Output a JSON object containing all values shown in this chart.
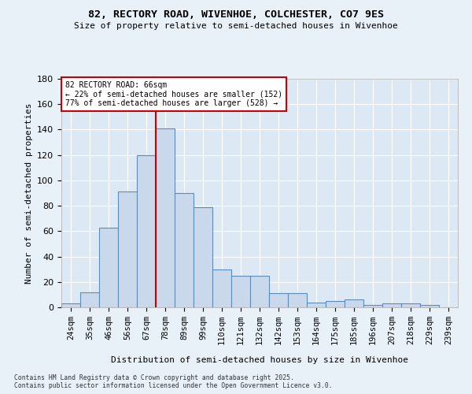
{
  "title_line1": "82, RECTORY ROAD, WIVENHOE, COLCHESTER, CO7 9ES",
  "title_line2": "Size of property relative to semi-detached houses in Wivenhoe",
  "xlabel": "Distribution of semi-detached houses by size in Wivenhoe",
  "ylabel": "Number of semi-detached properties",
  "categories": [
    "24sqm",
    "35sqm",
    "46sqm",
    "56sqm",
    "67sqm",
    "78sqm",
    "89sqm",
    "99sqm",
    "110sqm",
    "121sqm",
    "132sqm",
    "142sqm",
    "153sqm",
    "164sqm",
    "175sqm",
    "185sqm",
    "196sqm",
    "207sqm",
    "218sqm",
    "229sqm",
    "239sqm"
  ],
  "values": [
    3,
    12,
    63,
    91,
    120,
    141,
    90,
    79,
    30,
    25,
    25,
    11,
    11,
    4,
    5,
    6,
    2,
    3,
    3,
    2,
    0
  ],
  "bar_color": "#c9d9eb",
  "bar_edge_color": "#5b8db8",
  "property_line_x": 4.5,
  "annotation_title": "82 RECTORY ROAD: 66sqm",
  "annotation_line1": "← 22% of semi-detached houses are smaller (152)",
  "annotation_line2": "77% of semi-detached houses are larger (528) →",
  "annotation_color": "#cc0000",
  "ylim": [
    0,
    180
  ],
  "yticks": [
    0,
    20,
    40,
    60,
    80,
    100,
    120,
    140,
    160,
    180
  ],
  "footnote1": "Contains HM Land Registry data © Crown copyright and database right 2025.",
  "footnote2": "Contains public sector information licensed under the Open Government Licence v3.0.",
  "bg_color": "#e8f0f8",
  "plot_bg_color": "#dce8f4"
}
